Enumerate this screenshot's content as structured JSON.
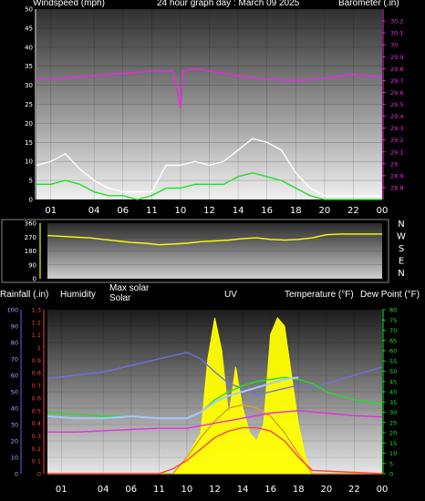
{
  "chart_data": [
    {
      "type": "line",
      "title": "24 hour graph day : March 09 2025",
      "left_axis_label": "Windspeed (mph)",
      "right_axis_label": "Barometer (.in)",
      "left_ticks": [
        "0",
        "5",
        "10",
        "15",
        "20",
        "25",
        "30",
        "35",
        "40",
        "45",
        "50"
      ],
      "right_ticks": [
        "28.8",
        "28.9",
        "29",
        "29.1",
        "29.2",
        "29.3",
        "29.4",
        "29.5",
        "29.6",
        "29.7",
        "29.8",
        "29.9",
        "30",
        "30.1",
        "30.2"
      ],
      "x_ticks": [
        "01",
        "04",
        "06",
        "11",
        "10",
        "12",
        "14",
        "16",
        "18",
        "20",
        "22",
        "00"
      ],
      "ylim_left": [
        0,
        50
      ],
      "ylim_right": [
        28.7,
        30.3
      ],
      "grid": true,
      "series": [
        {
          "role": "barometer",
          "color": "#e030e0",
          "axis": "right",
          "x": [
            0,
            2,
            4,
            6,
            8,
            9.5,
            10,
            10.2,
            11,
            12,
            14,
            16,
            18,
            20,
            22,
            24
          ],
          "y": [
            29.71,
            29.72,
            29.74,
            29.76,
            29.78,
            29.78,
            29.47,
            29.78,
            29.8,
            29.78,
            29.74,
            29.71,
            29.7,
            29.72,
            29.75,
            29.73
          ]
        },
        {
          "role": "windspeed-gust",
          "color": "#ffffff",
          "axis": "left",
          "x": [
            0,
            1,
            2,
            3,
            4,
            5,
            6,
            7,
            8,
            9,
            10,
            11,
            12,
            13,
            14,
            15,
            16,
            17,
            18,
            19,
            20,
            21,
            22,
            23,
            24
          ],
          "y": [
            9,
            10,
            12,
            8,
            5,
            3,
            2,
            2,
            2,
            9,
            9,
            10,
            9,
            10,
            13,
            16,
            15,
            13,
            7,
            3,
            1,
            1,
            1,
            1,
            1
          ]
        },
        {
          "role": "windspeed-avg",
          "color": "#22e022",
          "axis": "left",
          "x": [
            0,
            1,
            2,
            3,
            4,
            5,
            6,
            7,
            8,
            9,
            10,
            11,
            12,
            13,
            14,
            15,
            16,
            17,
            18,
            19,
            20,
            21,
            22,
            23,
            24
          ],
          "y": [
            4,
            4,
            5,
            4,
            2,
            1,
            1,
            0,
            1,
            3,
            3,
            4,
            4,
            4,
            6,
            7,
            6,
            5,
            3,
            1,
            0,
            0,
            0,
            0,
            0
          ]
        }
      ]
    },
    {
      "type": "line",
      "role": "wind-direction",
      "y_ticks": [
        "0",
        "90",
        "180",
        "270",
        "360"
      ],
      "direction_labels": [
        "N",
        "W",
        "S",
        "E",
        "N"
      ],
      "ylim": [
        0,
        360
      ],
      "series": [
        {
          "color": "#ffff00",
          "x": [
            0,
            1,
            2,
            3,
            4,
            5,
            6,
            7,
            8,
            9,
            10,
            11,
            12,
            13,
            14,
            15,
            16,
            17,
            18,
            19,
            20,
            21,
            22,
            23,
            24
          ],
          "y": [
            280,
            275,
            270,
            265,
            255,
            245,
            235,
            230,
            220,
            225,
            230,
            240,
            245,
            250,
            260,
            265,
            255,
            250,
            255,
            265,
            285,
            290,
            290,
            290,
            290
          ]
        }
      ]
    },
    {
      "type": "line",
      "labels": [
        "Rainfall (.in)",
        "Humidity",
        "Max solar",
        "Solar",
        "UV",
        "Temperature (°F)",
        "Dew Point (°F)"
      ],
      "left_ticks_humidity": [
        "0",
        "10",
        "20",
        "30",
        "40",
        "50",
        "60",
        "70",
        "80",
        "90",
        "100"
      ],
      "left_ticks_rain": [
        "0",
        "0.1",
        "0.2",
        "0.3",
        "0.4",
        "0.5",
        "0.6",
        "0.7",
        "0.8",
        "0.9",
        "1",
        "1.1",
        "1.2",
        "1.3"
      ],
      "right_ticks": [
        "0",
        "5",
        "10",
        "15",
        "20",
        "25",
        "30",
        "35",
        "40",
        "45",
        "50",
        "55",
        "60",
        "65",
        "70",
        "75",
        "80"
      ],
      "x_ticks": [
        "01",
        "04",
        "06",
        "11",
        "10",
        "12",
        "14",
        "16",
        "18",
        "20",
        "22",
        "00"
      ],
      "ylim_right": [
        0,
        80
      ],
      "grid": true,
      "series": [
        {
          "role": "solar",
          "color": "#ffff00",
          "fill": true,
          "x": [
            0,
            9,
            10,
            11,
            11.5,
            12,
            12.5,
            13,
            13.5,
            14,
            14.5,
            15,
            15.5,
            16,
            16.5,
            17,
            17.5,
            18,
            18.5,
            19,
            24
          ],
          "y": [
            0,
            0,
            10,
            25,
            70,
            95,
            75,
            35,
            65,
            40,
            25,
            20,
            30,
            85,
            95,
            90,
            60,
            30,
            10,
            0,
            0
          ]
        },
        {
          "role": "max-solar",
          "color": "#d8a030",
          "x": [
            0,
            9,
            10,
            11,
            12,
            13,
            14,
            15,
            16,
            17,
            18,
            19,
            24
          ],
          "y": [
            0,
            0,
            10,
            22,
            32,
            40,
            42,
            40,
            35,
            25,
            12,
            0,
            0
          ]
        },
        {
          "role": "humidity",
          "color": "#7070e0",
          "x": [
            0,
            2,
            4,
            6,
            8,
            10,
            11,
            12,
            13,
            14,
            15,
            16,
            17,
            18,
            19,
            20,
            22,
            24
          ],
          "y": [
            58,
            60,
            62,
            66,
            70,
            74,
            70,
            62,
            55,
            52,
            48,
            50,
            52,
            54,
            52,
            55,
            60,
            65
          ]
        },
        {
          "role": "temperature",
          "color": "#22e022",
          "x": [
            0,
            2,
            4,
            6,
            8,
            10,
            11,
            12,
            13,
            14,
            15,
            16,
            17,
            18,
            19,
            20,
            22,
            24
          ],
          "y": [
            30,
            29,
            28,
            28,
            27,
            27,
            30,
            36,
            40,
            43,
            45,
            46,
            47,
            46,
            44,
            40,
            36,
            34
          ]
        },
        {
          "role": "dew-point",
          "color": "#a8c8ff",
          "x": [
            0,
            2,
            4,
            6,
            8,
            10,
            11,
            12,
            13,
            14,
            15,
            16,
            17,
            18
          ],
          "y": [
            28,
            27,
            27,
            28,
            27,
            27,
            30,
            35,
            38,
            40,
            42,
            44,
            46,
            47
          ]
        },
        {
          "role": "rainfall",
          "color": "#e030e0",
          "x": [
            0,
            2,
            4,
            6,
            8,
            10,
            12,
            14,
            16,
            18,
            20,
            22,
            24
          ],
          "y": [
            0.33,
            0.33,
            0.34,
            0.35,
            0.36,
            0.36,
            0.4,
            0.44,
            0.48,
            0.5,
            0.48,
            0.46,
            0.45
          ]
        },
        {
          "role": "uv",
          "color": "#ff4040",
          "x": [
            0,
            8,
            9,
            10,
            11,
            12,
            13,
            14,
            15,
            16,
            17,
            18,
            19,
            24
          ],
          "y": [
            0,
            0,
            0.3,
            0.8,
            1.5,
            2.2,
            2.6,
            2.8,
            2.8,
            2.6,
            2.0,
            1.0,
            0.2,
            0
          ]
        }
      ]
    }
  ]
}
